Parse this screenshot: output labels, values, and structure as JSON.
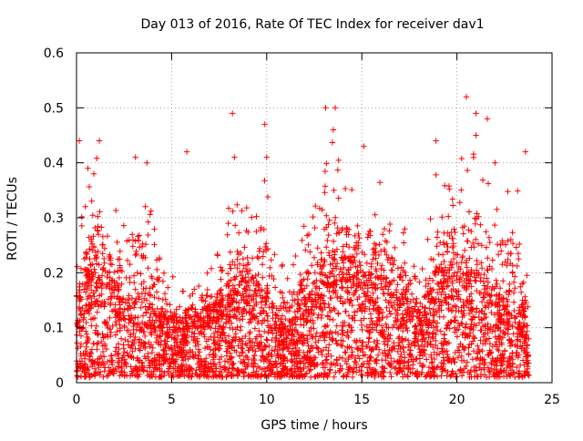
{
  "chart_data": {
    "type": "scatter",
    "title": "Day 013 of 2016, Rate Of TEC Index for receiver dav1",
    "xlabel": "GPS time / hours",
    "ylabel": "ROTI / TECUs",
    "xlim": [
      0,
      25
    ],
    "ylim": [
      0,
      0.6
    ],
    "x_ticks": [
      0,
      5,
      10,
      15,
      20,
      25
    ],
    "x_tick_labels": [
      "0",
      "5",
      "10",
      "15",
      "20",
      "25"
    ],
    "y_ticks": [
      0,
      0.1,
      0.2,
      0.3,
      0.4,
      0.5,
      0.6
    ],
    "y_tick_labels": [
      "0",
      "0.1",
      "0.2",
      "0.3",
      "0.4",
      "0.5",
      "0.6"
    ],
    "grid": true,
    "marker": "+",
    "series": [
      {
        "name": "ROTI dav1",
        "color": "#ff0000",
        "time_range_hours": [
          0,
          23.8
        ],
        "envelope": {
          "x": [
            0,
            0.5,
            1,
            1.5,
            2,
            2.5,
            3,
            3.5,
            4,
            4.5,
            5,
            5.5,
            6,
            6.5,
            7,
            7.5,
            8,
            8.5,
            9,
            9.5,
            10,
            10.5,
            11,
            11.5,
            12,
            12.5,
            13,
            13.5,
            14,
            14.5,
            15,
            15.5,
            16,
            16.5,
            17,
            17.5,
            18,
            18.5,
            19,
            19.5,
            20,
            20.5,
            21,
            21.5,
            22,
            22.5,
            23,
            23.5,
            23.8
          ],
          "y_max": [
            0.28,
            0.36,
            0.42,
            0.35,
            0.32,
            0.36,
            0.4,
            0.38,
            0.31,
            0.26,
            0.2,
            0.17,
            0.17,
            0.19,
            0.21,
            0.24,
            0.32,
            0.35,
            0.32,
            0.33,
            0.4,
            0.23,
            0.22,
            0.24,
            0.3,
            0.33,
            0.4,
            0.45,
            0.42,
            0.4,
            0.42,
            0.4,
            0.36,
            0.33,
            0.3,
            0.28,
            0.2,
            0.3,
            0.4,
            0.38,
            0.42,
            0.4,
            0.45,
            0.4,
            0.36,
            0.38,
            0.4,
            0.3,
            0.18
          ],
          "y_typical": [
            0.1,
            0.12,
            0.14,
            0.13,
            0.11,
            0.1,
            0.09,
            0.1,
            0.09,
            0.08,
            0.07,
            0.07,
            0.08,
            0.09,
            0.1,
            0.1,
            0.11,
            0.12,
            0.12,
            0.11,
            0.1,
            0.07,
            0.06,
            0.07,
            0.09,
            0.1,
            0.12,
            0.14,
            0.15,
            0.14,
            0.13,
            0.13,
            0.12,
            0.11,
            0.1,
            0.09,
            0.08,
            0.1,
            0.13,
            0.13,
            0.13,
            0.12,
            0.13,
            0.12,
            0.1,
            0.1,
            0.1,
            0.08,
            0.05
          ]
        },
        "notable_points": [
          {
            "x": 0.15,
            "y": 0.44
          },
          {
            "x": 0.6,
            "y": 0.39
          },
          {
            "x": 1.2,
            "y": 0.44
          },
          {
            "x": 3.1,
            "y": 0.41
          },
          {
            "x": 3.7,
            "y": 0.4
          },
          {
            "x": 5.8,
            "y": 0.42
          },
          {
            "x": 8.2,
            "y": 0.49
          },
          {
            "x": 8.3,
            "y": 0.41
          },
          {
            "x": 9.9,
            "y": 0.47
          },
          {
            "x": 10.0,
            "y": 0.41
          },
          {
            "x": 13.1,
            "y": 0.5
          },
          {
            "x": 13.6,
            "y": 0.5
          },
          {
            "x": 13.5,
            "y": 0.46
          },
          {
            "x": 15.1,
            "y": 0.43
          },
          {
            "x": 18.9,
            "y": 0.44
          },
          {
            "x": 20.5,
            "y": 0.52
          },
          {
            "x": 21.0,
            "y": 0.49
          },
          {
            "x": 21.0,
            "y": 0.45
          },
          {
            "x": 21.6,
            "y": 0.48
          },
          {
            "x": 22.0,
            "y": 0.4
          },
          {
            "x": 23.6,
            "y": 0.42
          }
        ]
      }
    ]
  }
}
